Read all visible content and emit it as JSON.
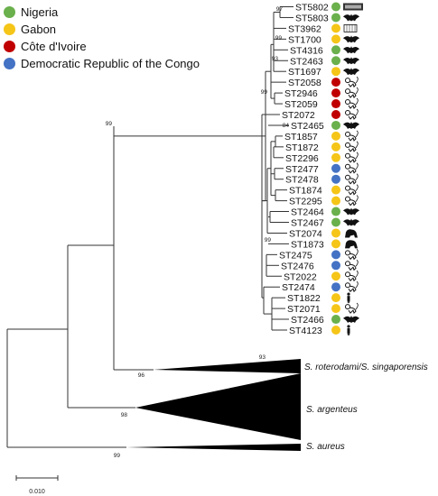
{
  "legend": [
    {
      "label": "Nigeria",
      "color": "#6ab04c"
    },
    {
      "label": "Gabon",
      "color": "#f5c518"
    },
    {
      "label": "Côte d'Ivoire",
      "color": "#c00000"
    },
    {
      "label": "Democratic Republic of the Congo",
      "color": "#4472c4"
    }
  ],
  "colors": {
    "nigeria": "#6ab04c",
    "gabon": "#f5c518",
    "cote_divoire": "#c00000",
    "drc": "#4472c4"
  },
  "taxa": [
    {
      "label": "ST5802",
      "country": "nigeria",
      "host": "chiroptera-crate-icon"
    },
    {
      "label": "ST5803",
      "country": "nigeria",
      "host": "bat-icon"
    },
    {
      "label": "ST3962",
      "country": "gabon",
      "host": "cage-icon"
    },
    {
      "label": "ST1700",
      "country": "gabon",
      "host": "bat-icon"
    },
    {
      "label": "ST4316",
      "country": "nigeria",
      "host": "bat-icon"
    },
    {
      "label": "ST2463",
      "country": "nigeria",
      "host": "bat-icon"
    },
    {
      "label": "ST1697",
      "country": "gabon",
      "host": "bat-icon"
    },
    {
      "label": "ST2058",
      "country": "cote_divoire",
      "host": "monkey-icon"
    },
    {
      "label": "ST2946",
      "country": "cote_divoire",
      "host": "monkey-icon"
    },
    {
      "label": "ST2059",
      "country": "cote_divoire",
      "host": "monkey-icon"
    },
    {
      "label": "ST2072",
      "country": "cote_divoire",
      "host": "monkey-icon"
    },
    {
      "label": "ST2465",
      "country": "nigeria",
      "host": "bat-icon"
    },
    {
      "label": "ST1857",
      "country": "gabon",
      "host": "monkey-icon"
    },
    {
      "label": "ST1872",
      "country": "gabon",
      "host": "monkey-icon"
    },
    {
      "label": "ST2296",
      "country": "gabon",
      "host": "monkey-icon"
    },
    {
      "label": "ST2477",
      "country": "drc",
      "host": "monkey-icon"
    },
    {
      "label": "ST2478",
      "country": "drc",
      "host": "monkey-icon"
    },
    {
      "label": "ST1874",
      "country": "gabon",
      "host": "monkey-icon"
    },
    {
      "label": "ST2295",
      "country": "gabon",
      "host": "monkey-icon"
    },
    {
      "label": "ST2464",
      "country": "nigeria",
      "host": "bat-icon"
    },
    {
      "label": "ST2467",
      "country": "nigeria",
      "host": "bat-icon"
    },
    {
      "label": "ST2074",
      "country": "gabon",
      "host": "gorilla-icon"
    },
    {
      "label": "ST1873",
      "country": "gabon",
      "host": "gorilla-icon"
    },
    {
      "label": "ST2475",
      "country": "drc",
      "host": "monkey-icon"
    },
    {
      "label": "ST2476",
      "country": "drc",
      "host": "monkey-icon"
    },
    {
      "label": "ST2022",
      "country": "gabon",
      "host": "monkey-icon"
    },
    {
      "label": "ST2474",
      "country": "drc",
      "host": "monkey-icon"
    },
    {
      "label": "ST1822",
      "country": "gabon",
      "host": "human-icon"
    },
    {
      "label": "ST2071",
      "country": "gabon",
      "host": "monkey-icon"
    },
    {
      "label": "ST2466",
      "country": "nigeria",
      "host": "bat-icon"
    },
    {
      "label": "ST4123",
      "country": "gabon",
      "host": "human-icon"
    }
  ],
  "clades": [
    {
      "label": "S. roterodami/S. singaporensis"
    },
    {
      "label": "S. argenteus"
    },
    {
      "label": "S. aureus"
    }
  ],
  "bootstrap": [
    "97",
    "99",
    "93",
    "99",
    "99",
    "84",
    "99",
    "93",
    "96",
    "98",
    "99"
  ],
  "scale_label": "0.010"
}
